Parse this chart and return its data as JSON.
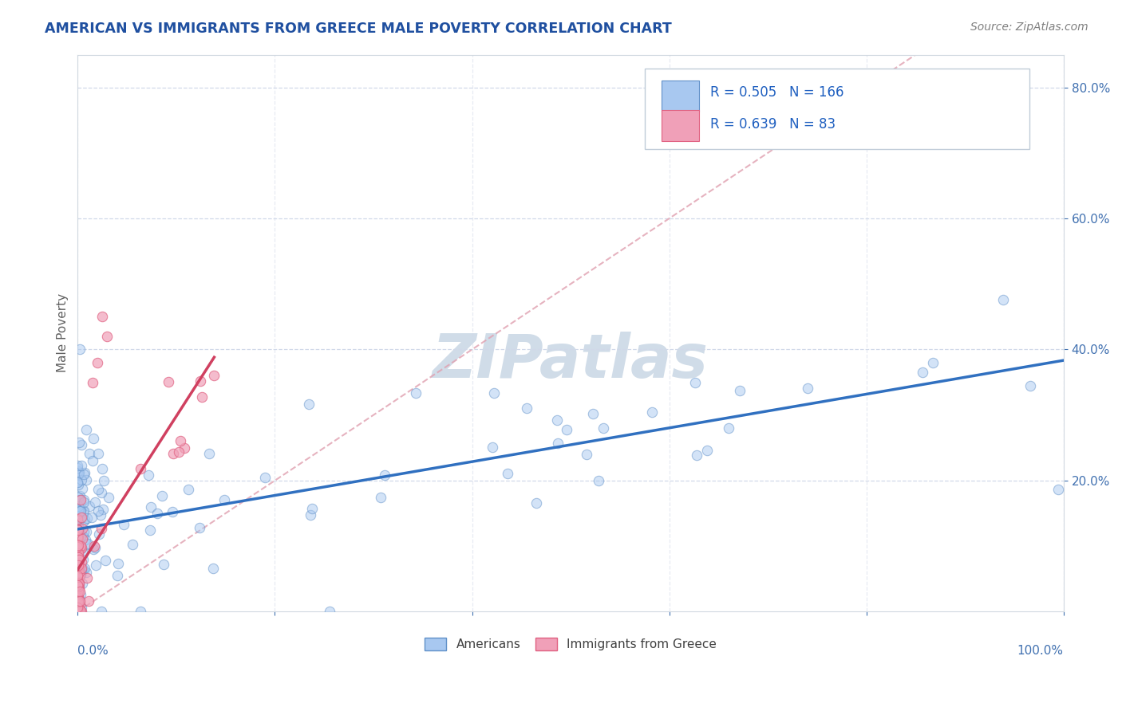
{
  "title": "AMERICAN VS IMMIGRANTS FROM GREECE MALE POVERTY CORRELATION CHART",
  "source_text": "Source: ZipAtlas.com",
  "ylabel": "Male Poverty",
  "legend_labels": [
    "Americans",
    "Immigrants from Greece"
  ],
  "r_american": 0.505,
  "n_american": 166,
  "r_greece": 0.639,
  "n_greece": 83,
  "color_american_fill": "#a8c8f0",
  "color_american_edge": "#6090c8",
  "color_greece_fill": "#f0a0b8",
  "color_greece_edge": "#e06080",
  "color_american_line": "#3070c0",
  "color_greece_line": "#d04060",
  "color_diag": "#e0a0b0",
  "watermark": "ZIPatlas",
  "watermark_color": "#d0dce8",
  "title_color": "#2050a0",
  "source_color": "#808080",
  "axis_tick_color": "#4070b0",
  "ylabel_color": "#606060",
  "background": "#ffffff",
  "grid_color": "#d0d8e8",
  "ylim": [
    0,
    0.85
  ],
  "xlim": [
    0,
    1.0
  ],
  "yticks": [
    0.2,
    0.4,
    0.6,
    0.8
  ],
  "xticks": [
    0,
    0.2,
    0.4,
    0.6,
    0.8,
    1.0
  ]
}
